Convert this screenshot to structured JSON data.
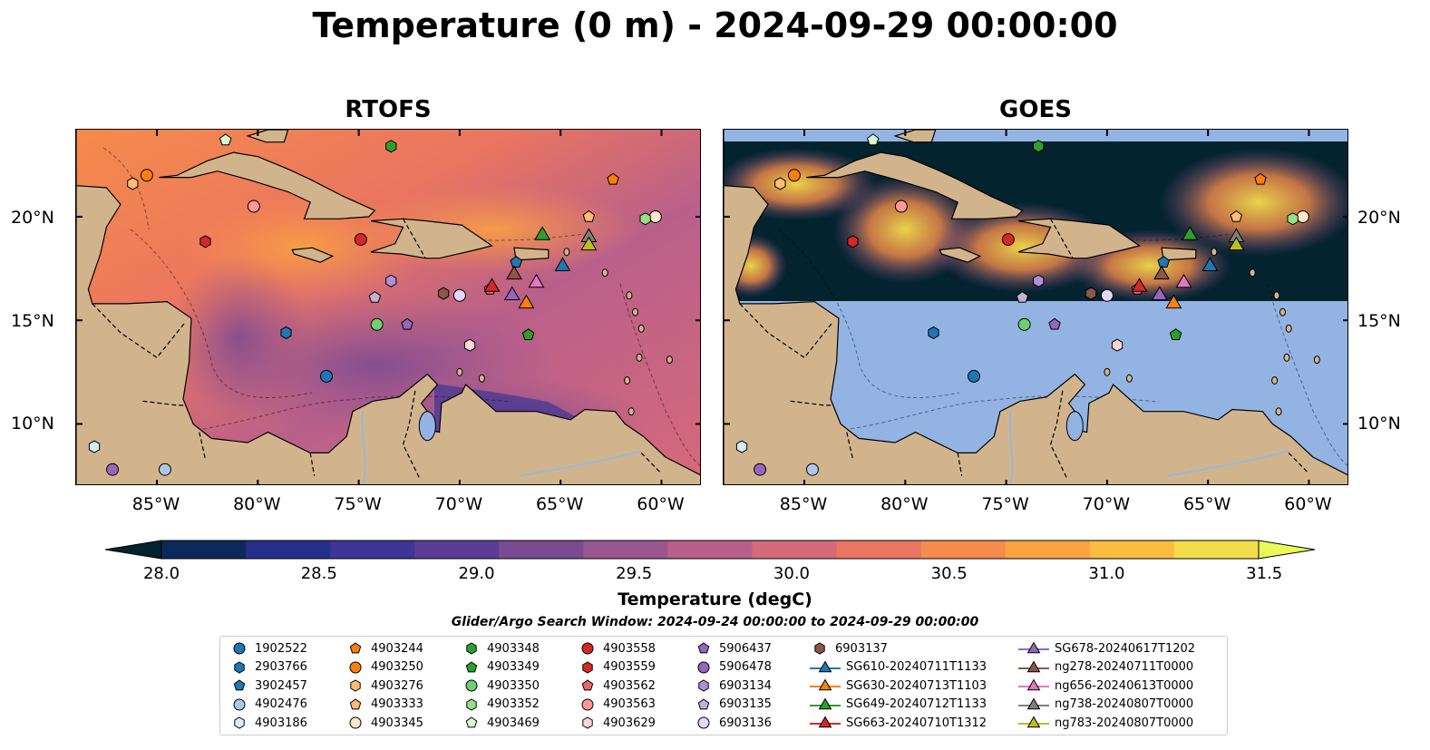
{
  "title": "Temperature (0 m) - 2024-09-29 00:00:00",
  "panels": [
    {
      "title": "RTOFS"
    },
    {
      "title": "GOES"
    }
  ],
  "axes": {
    "lon_labels": [
      "85°W",
      "80°W",
      "75°W",
      "70°W",
      "65°W",
      "60°W"
    ],
    "lat_labels": [
      "20°N",
      "15°N",
      "10°N"
    ],
    "lon_range": [
      -89,
      -58
    ],
    "lat_range": [
      7,
      24.2
    ]
  },
  "colorbar": {
    "label": "Temperature (degC)",
    "range": [
      28.0,
      31.75
    ],
    "ticks": [
      "28.0",
      "28.5",
      "29.0",
      "29.5",
      "30.0",
      "30.5",
      "31.0",
      "31.5"
    ],
    "colors": [
      "#03232f",
      "#0b2a5a",
      "#24308a",
      "#3e3594",
      "#5a3e95",
      "#7a4a92",
      "#9a568f",
      "#b9608a",
      "#d66a7a",
      "#ea7560",
      "#f58b4c",
      "#f9a343",
      "#fabd3f",
      "#f4dd4a",
      "#e9fa58"
    ]
  },
  "search_window": "Glider/Argo Search Window: 2024-09-24 00:00:00 to 2024-09-29 00:00:00",
  "legend": [
    {
      "name": "1902522",
      "shape": "circle",
      "color": "#1f77b4"
    },
    {
      "name": "2903766",
      "shape": "hexagon",
      "color": "#1f77b4"
    },
    {
      "name": "3902457",
      "shape": "pentagon",
      "color": "#1f77b4"
    },
    {
      "name": "4902476",
      "shape": "circle",
      "color": "#aec7e8"
    },
    {
      "name": "4903186",
      "shape": "hexagon",
      "color": "#d6ecff"
    },
    {
      "name": "4903244",
      "shape": "pentagon",
      "color": "#ff7f0e"
    },
    {
      "name": "4903250",
      "shape": "circle",
      "color": "#ff7f0e"
    },
    {
      "name": "4903276",
      "shape": "hexagon",
      "color": "#ffbb78"
    },
    {
      "name": "4903333",
      "shape": "pentagon",
      "color": "#ffbb78"
    },
    {
      "name": "4903345",
      "shape": "circle",
      "color": "#ffe6c9"
    },
    {
      "name": "4903348",
      "shape": "hexagon",
      "color": "#2ca02c"
    },
    {
      "name": "4903349",
      "shape": "pentagon",
      "color": "#2ca02c"
    },
    {
      "name": "4903350",
      "shape": "circle",
      "color": "#6fd06f"
    },
    {
      "name": "4903352",
      "shape": "hexagon",
      "color": "#98df8a"
    },
    {
      "name": "4903469",
      "shape": "pentagon",
      "color": "#d9f7d0"
    },
    {
      "name": "4903558",
      "shape": "circle",
      "color": "#d62728"
    },
    {
      "name": "4903559",
      "shape": "hexagon",
      "color": "#d62728"
    },
    {
      "name": "4903562",
      "shape": "pentagon",
      "color": "#e8676a"
    },
    {
      "name": "4903563",
      "shape": "circle",
      "color": "#ff9896"
    },
    {
      "name": "4903629",
      "shape": "hexagon",
      "color": "#ffd6d6"
    },
    {
      "name": "5906437",
      "shape": "pentagon",
      "color": "#9467bd"
    },
    {
      "name": "5906478",
      "shape": "circle",
      "color": "#9467bd"
    },
    {
      "name": "6903134",
      "shape": "hexagon",
      "color": "#b08fd6"
    },
    {
      "name": "6903135",
      "shape": "pentagon",
      "color": "#c5b0d5"
    },
    {
      "name": "6903136",
      "shape": "circle",
      "color": "#e5d7f5"
    },
    {
      "name": "6903137",
      "shape": "hexagon",
      "color": "#8c564b"
    },
    {
      "name": "SG610-20240711T1133",
      "shape": "triangle",
      "color": "#1f77b4"
    },
    {
      "name": "SG630-20240713T1103",
      "shape": "triangle",
      "color": "#ff7f0e"
    },
    {
      "name": "SG649-20240712T1133",
      "shape": "triangle",
      "color": "#2ca02c"
    },
    {
      "name": "SG663-20240710T1312",
      "shape": "triangle",
      "color": "#d62728"
    },
    {
      "name": "SG678-20240617T1202",
      "shape": "triangle",
      "color": "#9467bd"
    },
    {
      "name": "ng278-20240711T0000",
      "shape": "triangle",
      "color": "#8c564b"
    },
    {
      "name": "ng656-20240613T0000",
      "shape": "triangle",
      "color": "#e377c2"
    },
    {
      "name": "ng738-20240807T0000",
      "shape": "triangle",
      "color": "#7f7f7f"
    },
    {
      "name": "ng783-20240807T0000",
      "shape": "triangle",
      "color": "#bcbd22"
    }
  ],
  "markers": [
    {
      "id": "1902522",
      "lon": -76.6,
      "lat": 12.3
    },
    {
      "id": "2903766",
      "lon": -78.6,
      "lat": 14.4
    },
    {
      "id": "3902457",
      "lon": -67.2,
      "lat": 17.8
    },
    {
      "id": "4902476",
      "lon": -84.6,
      "lat": 7.8
    },
    {
      "id": "4903186",
      "lon": -88.1,
      "lat": 8.9
    },
    {
      "id": "4903244",
      "lon": -62.4,
      "lat": 21.8
    },
    {
      "id": "4903250",
      "lon": -85.5,
      "lat": 22.0
    },
    {
      "id": "4903276",
      "lon": -86.2,
      "lat": 21.6
    },
    {
      "id": "4903333",
      "lon": -63.6,
      "lat": 20.0
    },
    {
      "id": "4903345",
      "lon": -60.3,
      "lat": 20.0
    },
    {
      "id": "4903348",
      "lon": -73.4,
      "lat": 23.4
    },
    {
      "id": "4903349",
      "lon": -66.6,
      "lat": 14.3
    },
    {
      "id": "4903350",
      "lon": -74.1,
      "lat": 14.8
    },
    {
      "id": "4903352",
      "lon": -60.8,
      "lat": 19.9
    },
    {
      "id": "4903469",
      "lon": -81.6,
      "lat": 23.7
    },
    {
      "id": "4903558",
      "lon": -74.9,
      "lat": 18.9
    },
    {
      "id": "4903559",
      "lon": -82.6,
      "lat": 18.8
    },
    {
      "id": "4903562",
      "lon": -68.5,
      "lat": 16.5
    },
    {
      "id": "4903563",
      "lon": -80.2,
      "lat": 20.5
    },
    {
      "id": "4903629",
      "lon": -69.5,
      "lat": 13.8
    },
    {
      "id": "5906437",
      "lon": -72.6,
      "lat": 14.8
    },
    {
      "id": "5906478",
      "lon": -87.2,
      "lat": 7.8
    },
    {
      "id": "6903134",
      "lon": -73.4,
      "lat": 16.9
    },
    {
      "id": "6903135",
      "lon": -74.2,
      "lat": 16.1
    },
    {
      "id": "6903136",
      "lon": -70.0,
      "lat": 16.2
    },
    {
      "id": "6903137",
      "lon": -70.8,
      "lat": 16.3
    },
    {
      "id": "SG610-20240711T1133",
      "lon": -64.9,
      "lat": 17.6
    },
    {
      "id": "SG630-20240713T1103",
      "lon": -66.7,
      "lat": 15.8
    },
    {
      "id": "SG649-20240712T1133",
      "lon": -65.9,
      "lat": 19.1
    },
    {
      "id": "SG663-20240710T1312",
      "lon": -68.4,
      "lat": 16.6
    },
    {
      "id": "SG678-20240617T1202",
      "lon": -67.4,
      "lat": 16.2
    },
    {
      "id": "ng278-20240711T0000",
      "lon": -67.3,
      "lat": 17.2
    },
    {
      "id": "ng656-20240613T0000",
      "lon": -66.2,
      "lat": 16.8
    },
    {
      "id": "ng738-20240807T0000",
      "lon": -63.6,
      "lat": 19.0
    },
    {
      "id": "ng783-20240807T0000",
      "lon": -63.6,
      "lat": 18.6
    }
  ]
}
